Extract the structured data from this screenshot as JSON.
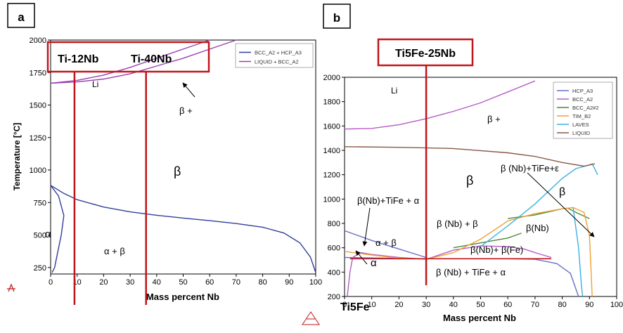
{
  "panels": {
    "a": {
      "label": "a",
      "alloy_1": "Ti-12Nb",
      "alloy_2": "Ti-40Nb"
    },
    "b": {
      "label": "b",
      "alloy_1": "Ti5Fe-25Nb",
      "base_label": "Ti5Fe"
    }
  },
  "colors": {
    "marker": "#c0161b",
    "bcc_hcp": "#2f3f9a",
    "liquid_bcc": "#9a3fb0",
    "hcp": "#6a6fc6",
    "bcc": "#b65bc8",
    "bcc2": "#4a8a3a",
    "tim": "#f0a030",
    "laves": "#3ab0e0",
    "liquid": "#8a5a48"
  },
  "chart_data": [
    {
      "type": "line",
      "panel": "a",
      "xlabel": "Mass percent Nb",
      "ylabel": "Temperature [°C]",
      "xlim": [
        0,
        100
      ],
      "ylim": [
        200,
        2000
      ],
      "x_ticks": [
        "0",
        "10",
        "20",
        "30",
        "40",
        "50",
        "60",
        "70",
        "80",
        "90",
        "100"
      ],
      "y_ticks": [
        "250",
        "500",
        "750",
        "1000",
        "1250",
        "1500",
        "1750",
        "2000"
      ],
      "legend_position": "top-right",
      "legend": [
        "BCC_A2 + HCP_A3",
        "LIQUID + BCC_A2"
      ],
      "series": [
        {
          "name": "BCC_A2 + HCP_A3",
          "color": "#2f3f9a",
          "segments": [
            [
              [
                0,
                882
              ],
              [
                5,
                820
              ],
              [
                10,
                772
              ],
              [
                20,
                715
              ],
              [
                30,
                678
              ],
              [
                40,
                652
              ],
              [
                50,
                630
              ],
              [
                60,
                610
              ],
              [
                70,
                588
              ],
              [
                80,
                560
              ],
              [
                88,
                515
              ],
              [
                94,
                440
              ],
              [
                98,
                330
              ],
              [
                100,
                210
              ]
            ],
            [
              [
                0,
                882
              ],
              [
                3,
                800
              ],
              [
                5,
                650
              ],
              [
                4,
                500
              ],
              [
                2.5,
                350
              ],
              [
                1.5,
                250
              ],
              [
                0.5,
                210
              ]
            ]
          ]
        },
        {
          "name": "LIQUID + BCC_A2",
          "color": "#9a3fb0",
          "segments": [
            [
              [
                0,
                1668
              ],
              [
                10,
                1690
              ],
              [
                20,
                1730
              ],
              [
                30,
                1790
              ],
              [
                40,
                1860
              ],
              [
                50,
                1930
              ],
              [
                60,
                2000
              ]
            ],
            [
              [
                0,
                1668
              ],
              [
                10,
                1678
              ],
              [
                20,
                1700
              ],
              [
                30,
                1740
              ],
              [
                40,
                1800
              ],
              [
                50,
                1860
              ],
              [
                60,
                1930
              ],
              [
                70,
                2000
              ]
            ]
          ]
        }
      ],
      "annotations": [
        "Li",
        "β +",
        "β",
        "α",
        "α + β"
      ],
      "markers": [
        {
          "label": "Ti-12Nb",
          "x": 9
        },
        {
          "label": "Ti-40Nb",
          "x": 36
        }
      ]
    },
    {
      "type": "line",
      "panel": "b",
      "xlabel": "Mass percent Nb",
      "xlim": [
        0,
        100
      ],
      "ylim": [
        200,
        2000
      ],
      "x_ticks": [
        "0",
        "10",
        "20",
        "30",
        "40",
        "50",
        "60",
        "70",
        "80",
        "90",
        "100"
      ],
      "y_ticks": [
        "200",
        "400",
        "600",
        "800",
        "1000",
        "1200",
        "1400",
        "1600",
        "1800",
        "2000"
      ],
      "legend_position": "top-right",
      "legend": [
        "HCP_A3",
        "BCC_A2",
        "BCC_A2#2",
        "TIM_B2",
        "LAVES",
        "LIQUID"
      ],
      "series": [
        {
          "name": "HCP_A3",
          "color": "#6a6fc6",
          "segments": [
            [
              [
                0,
                740
              ],
              [
                10,
                660
              ],
              [
                20,
                590
              ],
              [
                30,
                520
              ]
            ],
            [
              [
                0,
                520
              ],
              [
                30,
                510
              ],
              [
                50,
                510
              ],
              [
                60,
                510
              ],
              [
                70,
                505
              ],
              [
                78,
                470
              ],
              [
                83,
                390
              ],
              [
                86,
                200
              ]
            ]
          ]
        },
        {
          "name": "BCC_A2",
          "color": "#b65bc8",
          "segments": [
            [
              [
                0,
                1575
              ],
              [
                10,
                1580
              ],
              [
                20,
                1610
              ],
              [
                30,
                1660
              ],
              [
                40,
                1720
              ],
              [
                50,
                1790
              ],
              [
                60,
                1880
              ],
              [
                70,
                1970
              ]
            ],
            [
              [
                1,
                200
              ],
              [
                2,
                400
              ],
              [
                3,
                520
              ],
              [
                6,
                560
              ],
              [
                10,
                545
              ],
              [
                20,
                520
              ],
              [
                30,
                505
              ]
            ],
            [
              [
                30,
                505
              ],
              [
                40,
                580
              ],
              [
                50,
                615
              ],
              [
                60,
                610
              ],
              [
                66,
                590
              ],
              [
                70,
                560
              ],
              [
                76,
                520
              ]
            ]
          ]
        },
        {
          "name": "BCC_A2#2",
          "color": "#4a8a3a",
          "segments": [
            [
              [
                40,
                600
              ],
              [
                50,
                640
              ],
              [
                60,
                680
              ],
              [
                65,
                720
              ]
            ],
            [
              [
                60,
                840
              ],
              [
                70,
                870
              ],
              [
                80,
                920
              ],
              [
                82,
                925
              ],
              [
                86,
                880
              ],
              [
                90,
                840
              ]
            ]
          ]
        },
        {
          "name": "TIM_B2",
          "color": "#f0a030",
          "segments": [
            [
              [
                0,
                570
              ],
              [
                10,
                540
              ],
              [
                20,
                515
              ],
              [
                30,
                505
              ]
            ],
            [
              [
                30,
                505
              ],
              [
                40,
                560
              ],
              [
                50,
                670
              ],
              [
                60,
                820
              ],
              [
                70,
                880
              ],
              [
                80,
                920
              ],
              [
                84,
                930
              ],
              [
                88,
                890
              ],
              [
                90,
                700
              ],
              [
                91,
                200
              ]
            ]
          ]
        },
        {
          "name": "LAVES",
          "color": "#3ab0e0",
          "segments": [
            [
              [
                50,
                610
              ],
              [
                60,
                780
              ],
              [
                70,
                960
              ],
              [
                80,
                1170
              ],
              [
                85,
                1250
              ],
              [
                90,
                1280
              ],
              [
                91,
                1290
              ],
              [
                93,
                1200
              ]
            ],
            [
              [
                84,
                930
              ],
              [
                86,
                600
              ],
              [
                87,
                300
              ],
              [
                87.5,
                200
              ]
            ]
          ]
        },
        {
          "name": "LIQUID",
          "color": "#8a5a48",
          "segments": [
            [
              [
                0,
                1430
              ],
              [
                20,
                1425
              ],
              [
                40,
                1415
              ],
              [
                60,
                1380
              ],
              [
                70,
                1350
              ],
              [
                80,
                1300
              ],
              [
                88,
                1270
              ],
              [
                92,
                1290
              ]
            ]
          ]
        }
      ],
      "annotations": [
        "Li",
        "β +",
        "β",
        "β (Nb)+TiFe+ε",
        "β",
        "β(Nb)+TiFe + α",
        "β (Nb) + β",
        "β(Nb)",
        "α + β",
        "β(Nb)+ β(Fe)",
        "α",
        "β (Nb) + TiFe + α"
      ],
      "markers": [
        {
          "label": "Ti5Fe-25Nb",
          "x": 30
        }
      ]
    }
  ]
}
